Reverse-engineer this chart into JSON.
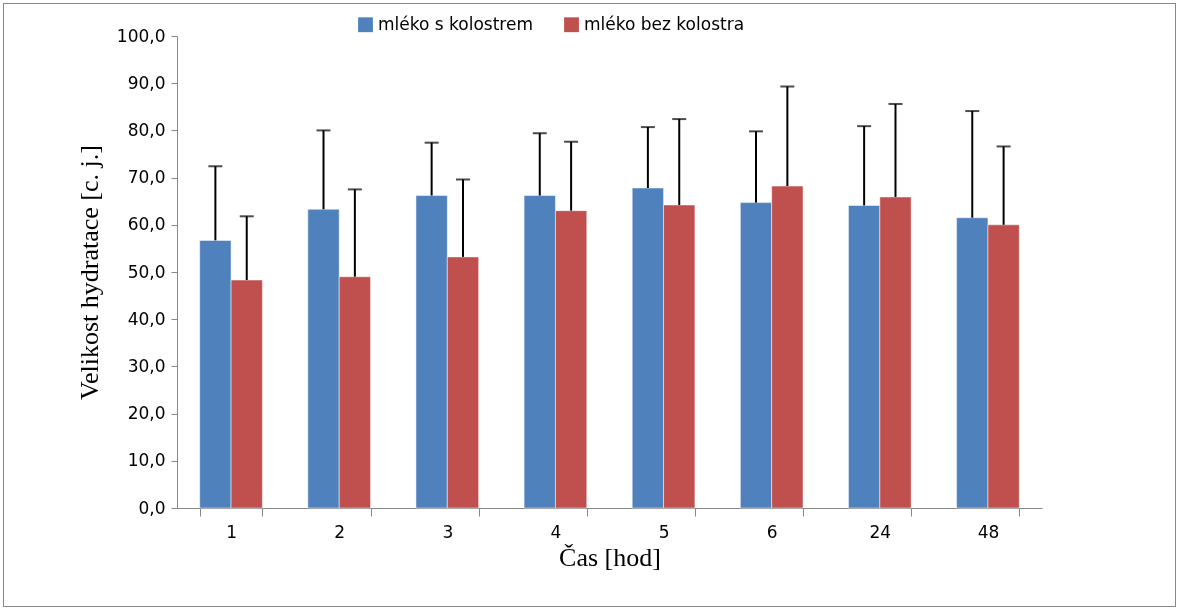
{
  "chart_data": {
    "type": "bar",
    "xlabel": "Čas  [hod]",
    "ylabel": "Velikost hydratace [c. j.]",
    "categories": [
      "1",
      "2",
      "3",
      "4",
      "5",
      "6",
      "24",
      "48"
    ],
    "series": [
      {
        "name": "mléko s kolostrem",
        "color": "#4f81bd",
        "values": [
          56.7,
          63.3,
          66.2,
          66.2,
          67.8,
          64.7,
          64.1,
          61.5
        ],
        "errors": [
          [
            56.7,
            72.4
          ],
          [
            63.3,
            80.0
          ],
          [
            66.2,
            77.4
          ],
          [
            66.2,
            79.4
          ],
          [
            67.8,
            80.7
          ],
          [
            64.7,
            79.8
          ],
          [
            64.1,
            80.9
          ],
          [
            61.5,
            84.1
          ]
        ]
      },
      {
        "name": "mléko bez kolostra",
        "color": "#c0504d",
        "values": [
          48.3,
          49.0,
          53.2,
          63.0,
          64.2,
          68.2,
          65.9,
          60.0
        ],
        "errors": [
          [
            48.3,
            61.8
          ],
          [
            49.0,
            67.5
          ],
          [
            53.2,
            69.6
          ],
          [
            63.0,
            77.6
          ],
          [
            64.2,
            82.4
          ],
          [
            68.2,
            89.3
          ],
          [
            65.9,
            85.6
          ],
          [
            60.0,
            76.6
          ]
        ]
      }
    ],
    "ylim": [
      0,
      100
    ],
    "yticks": [
      {
        "value": 0,
        "label": "0,0"
      },
      {
        "value": 10,
        "label": "10,0"
      },
      {
        "value": 20,
        "label": "20,0"
      },
      {
        "value": 30,
        "label": "30,0"
      },
      {
        "value": 40,
        "label": "40,0"
      },
      {
        "value": 50,
        "label": "50,0"
      },
      {
        "value": 60,
        "label": "60,0"
      },
      {
        "value": 70,
        "label": "70,0"
      },
      {
        "value": 80,
        "label": "80,0"
      },
      {
        "value": 90,
        "label": "90,0"
      },
      {
        "value": 100,
        "label": "100,0"
      }
    ],
    "grid": false,
    "legend": "top"
  }
}
